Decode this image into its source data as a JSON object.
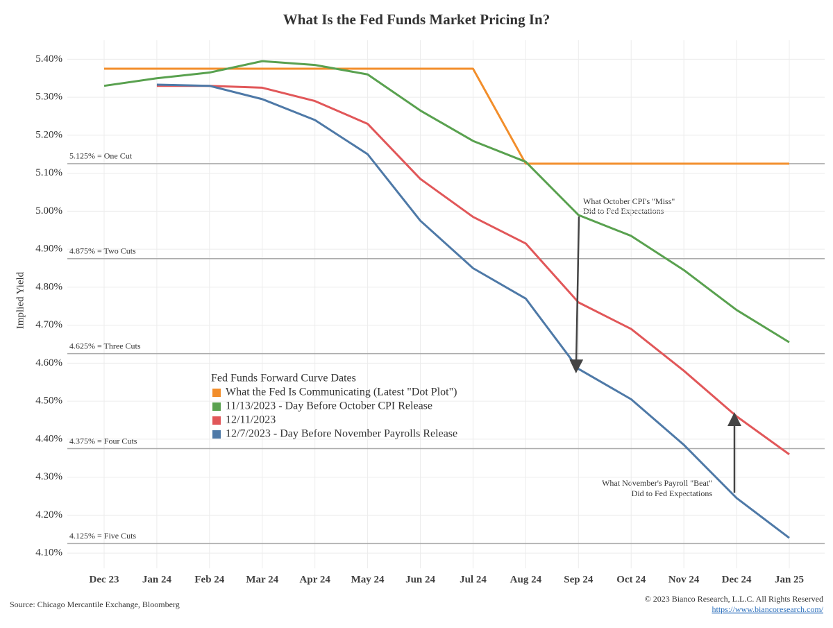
{
  "chart_data": {
    "type": "line",
    "title": "What Is the Fed Funds Market Pricing In?",
    "y_label": "Implied Yield",
    "categories": [
      "Dec 23",
      "Jan 24",
      "Feb 24",
      "Mar 24",
      "Apr 24",
      "May 24",
      "Jun 24",
      "Jul 24",
      "Aug 24",
      "Sep 24",
      "Oct 24",
      "Nov 24",
      "Dec 24",
      "Jan 25"
    ],
    "ylim": [
      4.06,
      5.45
    ],
    "yticks": [
      {
        "value": 4.1,
        "label": "4.10%"
      },
      {
        "value": 4.2,
        "label": "4.20%"
      },
      {
        "value": 4.3,
        "label": "4.30%"
      },
      {
        "value": 4.4,
        "label": "4.40%"
      },
      {
        "value": 4.5,
        "label": "4.50%"
      },
      {
        "value": 4.6,
        "label": "4.60%"
      },
      {
        "value": 4.7,
        "label": "4.70%"
      },
      {
        "value": 4.8,
        "label": "4.80%"
      },
      {
        "value": 4.9,
        "label": "4.90%"
      },
      {
        "value": 5.0,
        "label": "5.00%"
      },
      {
        "value": 5.1,
        "label": "5.10%"
      },
      {
        "value": 5.2,
        "label": "5.20%"
      },
      {
        "value": 5.3,
        "label": "5.30%"
      },
      {
        "value": 5.4,
        "label": "5.40%"
      }
    ],
    "grid": true,
    "reference_lines": [
      {
        "value": 5.125,
        "label": "5.125% = One Cut"
      },
      {
        "value": 4.875,
        "label": "4.875% = Two Cuts"
      },
      {
        "value": 4.625,
        "label": "4.625% = Three Cuts"
      },
      {
        "value": 4.375,
        "label": "4.375% = Four Cuts"
      },
      {
        "value": 4.125,
        "label": "4.125% = Five Cuts"
      }
    ],
    "legend_title": "Fed Funds Forward Curve Dates",
    "series": [
      {
        "name": "What the Fed Is Communicating (Latest \"Dot Plot\")",
        "color": "#f28e2b",
        "values": [
          5.375,
          5.375,
          5.375,
          5.375,
          5.375,
          5.375,
          5.375,
          5.375,
          5.125,
          5.125,
          5.125,
          5.125,
          5.125,
          5.125
        ]
      },
      {
        "name": "11/13/2023 - Day Before October CPI Release",
        "color": "#59a14f",
        "values": [
          5.33,
          5.35,
          5.365,
          5.395,
          5.385,
          5.36,
          5.265,
          5.185,
          5.13,
          4.99,
          4.935,
          4.845,
          4.74,
          4.655
        ]
      },
      {
        "name": "12/11/2023",
        "color": "#e15759",
        "values": [
          null,
          5.33,
          5.33,
          5.325,
          5.29,
          5.23,
          5.085,
          4.985,
          4.915,
          4.76,
          4.69,
          4.58,
          4.46,
          4.36
        ]
      },
      {
        "name": "12/7/2023 - Day Before November Payrolls Release",
        "color": "#4e79a7",
        "values": [
          null,
          5.333,
          5.33,
          5.295,
          5.24,
          5.15,
          4.975,
          4.85,
          4.77,
          4.585,
          4.505,
          4.385,
          4.245,
          4.14
        ]
      }
    ],
    "annotations": [
      [
        "What October CPI's \"Miss\"",
        "Did to Fed Expectations"
      ],
      [
        "What November's Payroll \"Beat\"",
        "Did to Fed Expectations"
      ]
    ],
    "source": "Source: Chicago Mercantile Exchange, Bloomberg",
    "copyright": "© 2023 Bianco Research, L.L.C. All Rights Reserved",
    "url": "https://www.biancoresearch.com/"
  }
}
